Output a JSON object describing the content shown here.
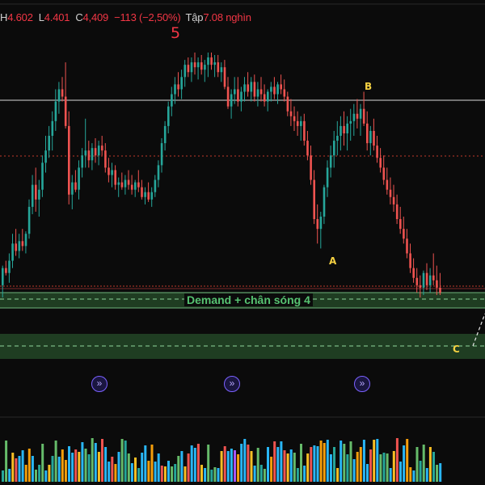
{
  "ohlc": {
    "high_label": "H",
    "high": "4.602",
    "low_label": "L",
    "low": "4.401",
    "close_label": "C",
    "close": "4,409",
    "change": "−113 (−2,50%)",
    "volume_label": "Tập",
    "volume": "7.08 nghìn"
  },
  "labels": {
    "wave5": "5",
    "waveA": "A",
    "waveB": "B",
    "waveC": "C",
    "zone": "Demand + chân sóng 4"
  },
  "colors": {
    "background": "#0b0b0b",
    "up": "#26a69a",
    "down": "#ef5350",
    "demand_zone": "#1f3d22",
    "zone_text": "#56c271",
    "wave5": "#f23645",
    "wave_abc": "#f5d142",
    "resistance_line": "#d9d9d9",
    "dotted_line": "#c0392b",
    "fast_forward": "#7b61ff"
  },
  "icons": [
    "fast-forward-icon",
    "fast-forward-icon",
    "fast-forward-icon"
  ],
  "chart_data": {
    "type": "candlestick",
    "candles": [
      [
        0.05,
        0.13,
        0.0,
        0.12
      ],
      [
        0.12,
        0.15,
        0.09,
        0.1
      ],
      [
        0.1,
        0.18,
        0.06,
        0.15
      ],
      [
        0.15,
        0.26,
        0.12,
        0.22
      ],
      [
        0.22,
        0.28,
        0.17,
        0.19
      ],
      [
        0.19,
        0.26,
        0.16,
        0.23
      ],
      [
        0.23,
        0.28,
        0.19,
        0.21
      ],
      [
        0.21,
        0.27,
        0.18,
        0.26
      ],
      [
        0.26,
        0.4,
        0.24,
        0.37
      ],
      [
        0.37,
        0.5,
        0.34,
        0.46
      ],
      [
        0.46,
        0.53,
        0.35,
        0.4
      ],
      [
        0.4,
        0.48,
        0.33,
        0.44
      ],
      [
        0.44,
        0.58,
        0.41,
        0.55
      ],
      [
        0.55,
        0.66,
        0.51,
        0.6
      ],
      [
        0.6,
        0.7,
        0.57,
        0.66
      ],
      [
        0.66,
        0.76,
        0.6,
        0.72
      ],
      [
        0.72,
        0.85,
        0.68,
        0.8
      ],
      [
        0.8,
        0.88,
        0.75,
        0.85
      ],
      [
        0.85,
        0.9,
        0.8,
        0.82
      ],
      [
        0.82,
        0.96,
        0.69,
        0.7
      ],
      [
        0.7,
        0.76,
        0.38,
        0.42
      ],
      [
        0.42,
        0.5,
        0.36,
        0.47
      ],
      [
        0.47,
        0.52,
        0.43,
        0.44
      ],
      [
        0.44,
        0.56,
        0.4,
        0.53
      ],
      [
        0.53,
        0.61,
        0.49,
        0.58
      ],
      [
        0.58,
        0.73,
        0.53,
        0.6
      ],
      [
        0.6,
        0.64,
        0.53,
        0.56
      ],
      [
        0.56,
        0.63,
        0.52,
        0.61
      ],
      [
        0.61,
        0.65,
        0.55,
        0.58
      ],
      [
        0.58,
        0.64,
        0.54,
        0.62
      ],
      [
        0.62,
        0.66,
        0.58,
        0.6
      ],
      [
        0.6,
        0.63,
        0.51,
        0.53
      ],
      [
        0.53,
        0.57,
        0.47,
        0.5
      ],
      [
        0.5,
        0.55,
        0.45,
        0.52
      ],
      [
        0.52,
        0.54,
        0.44,
        0.46
      ],
      [
        0.46,
        0.49,
        0.41,
        0.47
      ],
      [
        0.47,
        0.51,
        0.44,
        0.45
      ],
      [
        0.45,
        0.5,
        0.42,
        0.48
      ],
      [
        0.48,
        0.52,
        0.44,
        0.46
      ],
      [
        0.46,
        0.5,
        0.42,
        0.44
      ],
      [
        0.44,
        0.48,
        0.41,
        0.47
      ],
      [
        0.47,
        0.52,
        0.43,
        0.45
      ],
      [
        0.45,
        0.48,
        0.4,
        0.41
      ],
      [
        0.41,
        0.45,
        0.38,
        0.43
      ],
      [
        0.43,
        0.47,
        0.39,
        0.4
      ],
      [
        0.4,
        0.45,
        0.37,
        0.43
      ],
      [
        0.43,
        0.5,
        0.41,
        0.48
      ],
      [
        0.48,
        0.56,
        0.45,
        0.54
      ],
      [
        0.54,
        0.65,
        0.51,
        0.63
      ],
      [
        0.63,
        0.72,
        0.6,
        0.7
      ],
      [
        0.7,
        0.8,
        0.67,
        0.78
      ],
      [
        0.78,
        0.86,
        0.74,
        0.83
      ],
      [
        0.83,
        0.9,
        0.79,
        0.87
      ],
      [
        0.87,
        0.92,
        0.82,
        0.85
      ],
      [
        0.85,
        0.93,
        0.81,
        0.9
      ],
      [
        0.9,
        0.97,
        0.86,
        0.95
      ],
      [
        0.95,
        0.98,
        0.9,
        0.92
      ],
      [
        0.92,
        0.98,
        0.88,
        0.96
      ],
      [
        0.96,
        1.0,
        0.91,
        0.94
      ],
      [
        0.94,
        0.98,
        0.89,
        0.96
      ],
      [
        0.96,
        0.99,
        0.91,
        0.93
      ],
      [
        0.93,
        0.97,
        0.88,
        0.95
      ],
      [
        0.95,
        1.0,
        0.9,
        0.98
      ],
      [
        0.98,
        1.0,
        0.93,
        0.95
      ],
      [
        0.95,
        0.99,
        0.9,
        0.96
      ],
      [
        0.96,
        0.99,
        0.9,
        0.92
      ],
      [
        0.92,
        0.96,
        0.88,
        0.94
      ],
      [
        0.94,
        0.97,
        0.85,
        0.86
      ],
      [
        0.86,
        0.9,
        0.77,
        0.78
      ],
      [
        0.78,
        0.85,
        0.73,
        0.83
      ],
      [
        0.83,
        0.9,
        0.79,
        0.85
      ],
      [
        0.85,
        0.9,
        0.78,
        0.8
      ],
      [
        0.8,
        0.86,
        0.76,
        0.84
      ],
      [
        0.84,
        0.9,
        0.8,
        0.87
      ],
      [
        0.87,
        0.92,
        0.82,
        0.84
      ],
      [
        0.84,
        0.9,
        0.8,
        0.88
      ],
      [
        0.88,
        0.91,
        0.8,
        0.82
      ],
      [
        0.82,
        0.88,
        0.78,
        0.85
      ],
      [
        0.85,
        0.9,
        0.8,
        0.83
      ],
      [
        0.83,
        0.87,
        0.78,
        0.8
      ],
      [
        0.8,
        0.85,
        0.76,
        0.84
      ],
      [
        0.84,
        0.88,
        0.8,
        0.86
      ],
      [
        0.86,
        0.9,
        0.81,
        0.83
      ],
      [
        0.83,
        0.88,
        0.79,
        0.87
      ],
      [
        0.87,
        0.91,
        0.83,
        0.85
      ],
      [
        0.85,
        0.89,
        0.8,
        0.82
      ],
      [
        0.82,
        0.84,
        0.74,
        0.76
      ],
      [
        0.76,
        0.81,
        0.7,
        0.74
      ],
      [
        0.74,
        0.78,
        0.68,
        0.72
      ],
      [
        0.72,
        0.76,
        0.66,
        0.7
      ],
      [
        0.7,
        0.74,
        0.64,
        0.72
      ],
      [
        0.72,
        0.75,
        0.62,
        0.64
      ],
      [
        0.64,
        0.68,
        0.56,
        0.58
      ],
      [
        0.58,
        0.62,
        0.46,
        0.48
      ],
      [
        0.48,
        0.52,
        0.3,
        0.32
      ],
      [
        0.32,
        0.38,
        0.22,
        0.28
      ],
      [
        0.28,
        0.35,
        0.2,
        0.33
      ],
      [
        0.33,
        0.46,
        0.3,
        0.45
      ],
      [
        0.45,
        0.56,
        0.41,
        0.53
      ],
      [
        0.53,
        0.62,
        0.49,
        0.58
      ],
      [
        0.58,
        0.68,
        0.53,
        0.64
      ],
      [
        0.64,
        0.72,
        0.58,
        0.66
      ],
      [
        0.66,
        0.74,
        0.6,
        0.7
      ],
      [
        0.7,
        0.76,
        0.62,
        0.67
      ],
      [
        0.67,
        0.74,
        0.6,
        0.71
      ],
      [
        0.71,
        0.77,
        0.64,
        0.72
      ],
      [
        0.72,
        0.79,
        0.66,
        0.75
      ],
      [
        0.75,
        0.81,
        0.69,
        0.73
      ],
      [
        0.73,
        0.79,
        0.66,
        0.77
      ],
      [
        0.77,
        0.84,
        0.7,
        0.71
      ],
      [
        0.71,
        0.76,
        0.6,
        0.63
      ],
      [
        0.63,
        0.7,
        0.58,
        0.68
      ],
      [
        0.68,
        0.73,
        0.6,
        0.62
      ],
      [
        0.62,
        0.66,
        0.55,
        0.57
      ],
      [
        0.57,
        0.61,
        0.51,
        0.53
      ],
      [
        0.53,
        0.58,
        0.46,
        0.48
      ],
      [
        0.48,
        0.53,
        0.42,
        0.44
      ],
      [
        0.44,
        0.49,
        0.38,
        0.41
      ],
      [
        0.41,
        0.46,
        0.35,
        0.38
      ],
      [
        0.38,
        0.42,
        0.3,
        0.32
      ],
      [
        0.32,
        0.37,
        0.26,
        0.28
      ],
      [
        0.28,
        0.33,
        0.22,
        0.24
      ],
      [
        0.24,
        0.28,
        0.16,
        0.18
      ],
      [
        0.18,
        0.22,
        0.1,
        0.12
      ],
      [
        0.12,
        0.16,
        0.06,
        0.08
      ],
      [
        0.08,
        0.12,
        0.02,
        0.05
      ],
      [
        0.05,
        0.09,
        0.0,
        0.04
      ],
      [
        0.04,
        0.11,
        0.01,
        0.1
      ],
      [
        0.1,
        0.14,
        0.03,
        0.05
      ],
      [
        0.05,
        0.12,
        0.02,
        0.09
      ],
      [
        0.09,
        0.18,
        0.05,
        0.07
      ],
      [
        0.07,
        0.13,
        0.01,
        0.04
      ],
      [
        0.04,
        0.1,
        0.01,
        0.02
      ]
    ]
  }
}
